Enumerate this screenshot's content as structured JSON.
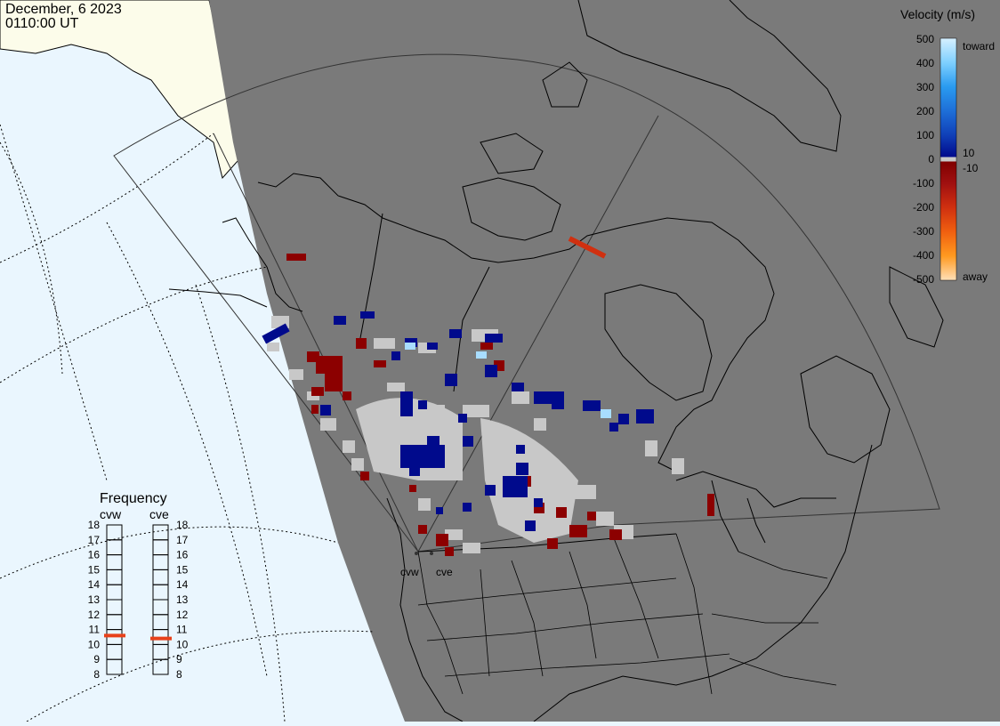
{
  "header": {
    "date": "December, 6 2023",
    "time": "0110:00 UT"
  },
  "legend": {
    "title": "Velocity (m/s)",
    "ticks": [
      "500",
      "400",
      "300",
      "200",
      "100",
      "0",
      "-100",
      "-200",
      "-300",
      "-400",
      "-500"
    ],
    "label_pos10": "10",
    "label_neg10": "-10",
    "label_toward": "toward",
    "label_away": "away"
  },
  "frequency": {
    "title": "Frequency",
    "radars": [
      {
        "name": "cvw",
        "frequency_mhz": 10.6
      },
      {
        "name": "cve",
        "frequency_mhz": 10.4
      }
    ],
    "scale": [
      "18",
      "17",
      "16",
      "15",
      "14",
      "13",
      "12",
      "11",
      "10",
      "9",
      "8"
    ]
  },
  "stations": {
    "cvw": "cvw",
    "cve": "cve"
  },
  "colors": {
    "ocean": "#eaf6fe",
    "land_daylight": "#fcfcea",
    "night": "#7a7a7a",
    "ground_scatter": "#c8c8c8",
    "freq_marker": "#e8411a"
  }
}
